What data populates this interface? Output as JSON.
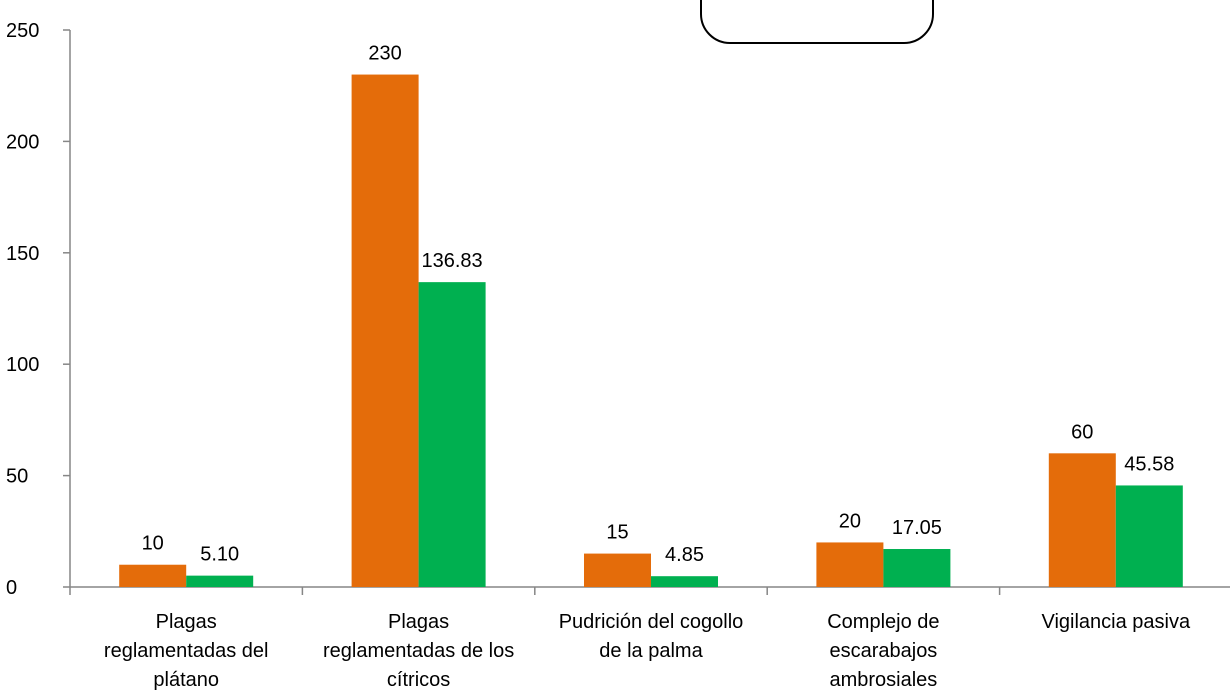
{
  "chart_data": {
    "type": "bar",
    "categories": [
      "Plagas reglamentadas del plátano",
      "Plagas reglamentadas de los cítricos",
      "Pudrición del cogollo de la palma",
      "Complejo de escarabajos ambrosiales",
      "Vigilancia pasiva"
    ],
    "category_lines": [
      [
        "Plagas",
        "reglamentadas del",
        "plátano"
      ],
      [
        "Plagas",
        "reglamentadas de los",
        "cítricos"
      ],
      [
        "Pudrición del cogollo",
        "de la palma"
      ],
      [
        "Complejo de",
        "escarabajos",
        "ambrosiales"
      ],
      [
        "Vigilancia pasiva"
      ]
    ],
    "series": [
      {
        "values": [
          10,
          230,
          15,
          20,
          60
        ],
        "labels": [
          "10",
          "230",
          "15",
          "20",
          "60"
        ],
        "color": "#E46C0A"
      },
      {
        "values": [
          5.1,
          136.83,
          4.85,
          17.05,
          45.58
        ],
        "labels": [
          "5.10",
          "136.83",
          "4.85",
          "17.05",
          "45.58"
        ],
        "color": "#00B050"
      }
    ],
    "ylim": [
      0,
      250
    ],
    "yticks": [
      "0",
      "50",
      "100",
      "150",
      "200",
      "250"
    ],
    "grid": false,
    "legend": "top-center"
  }
}
